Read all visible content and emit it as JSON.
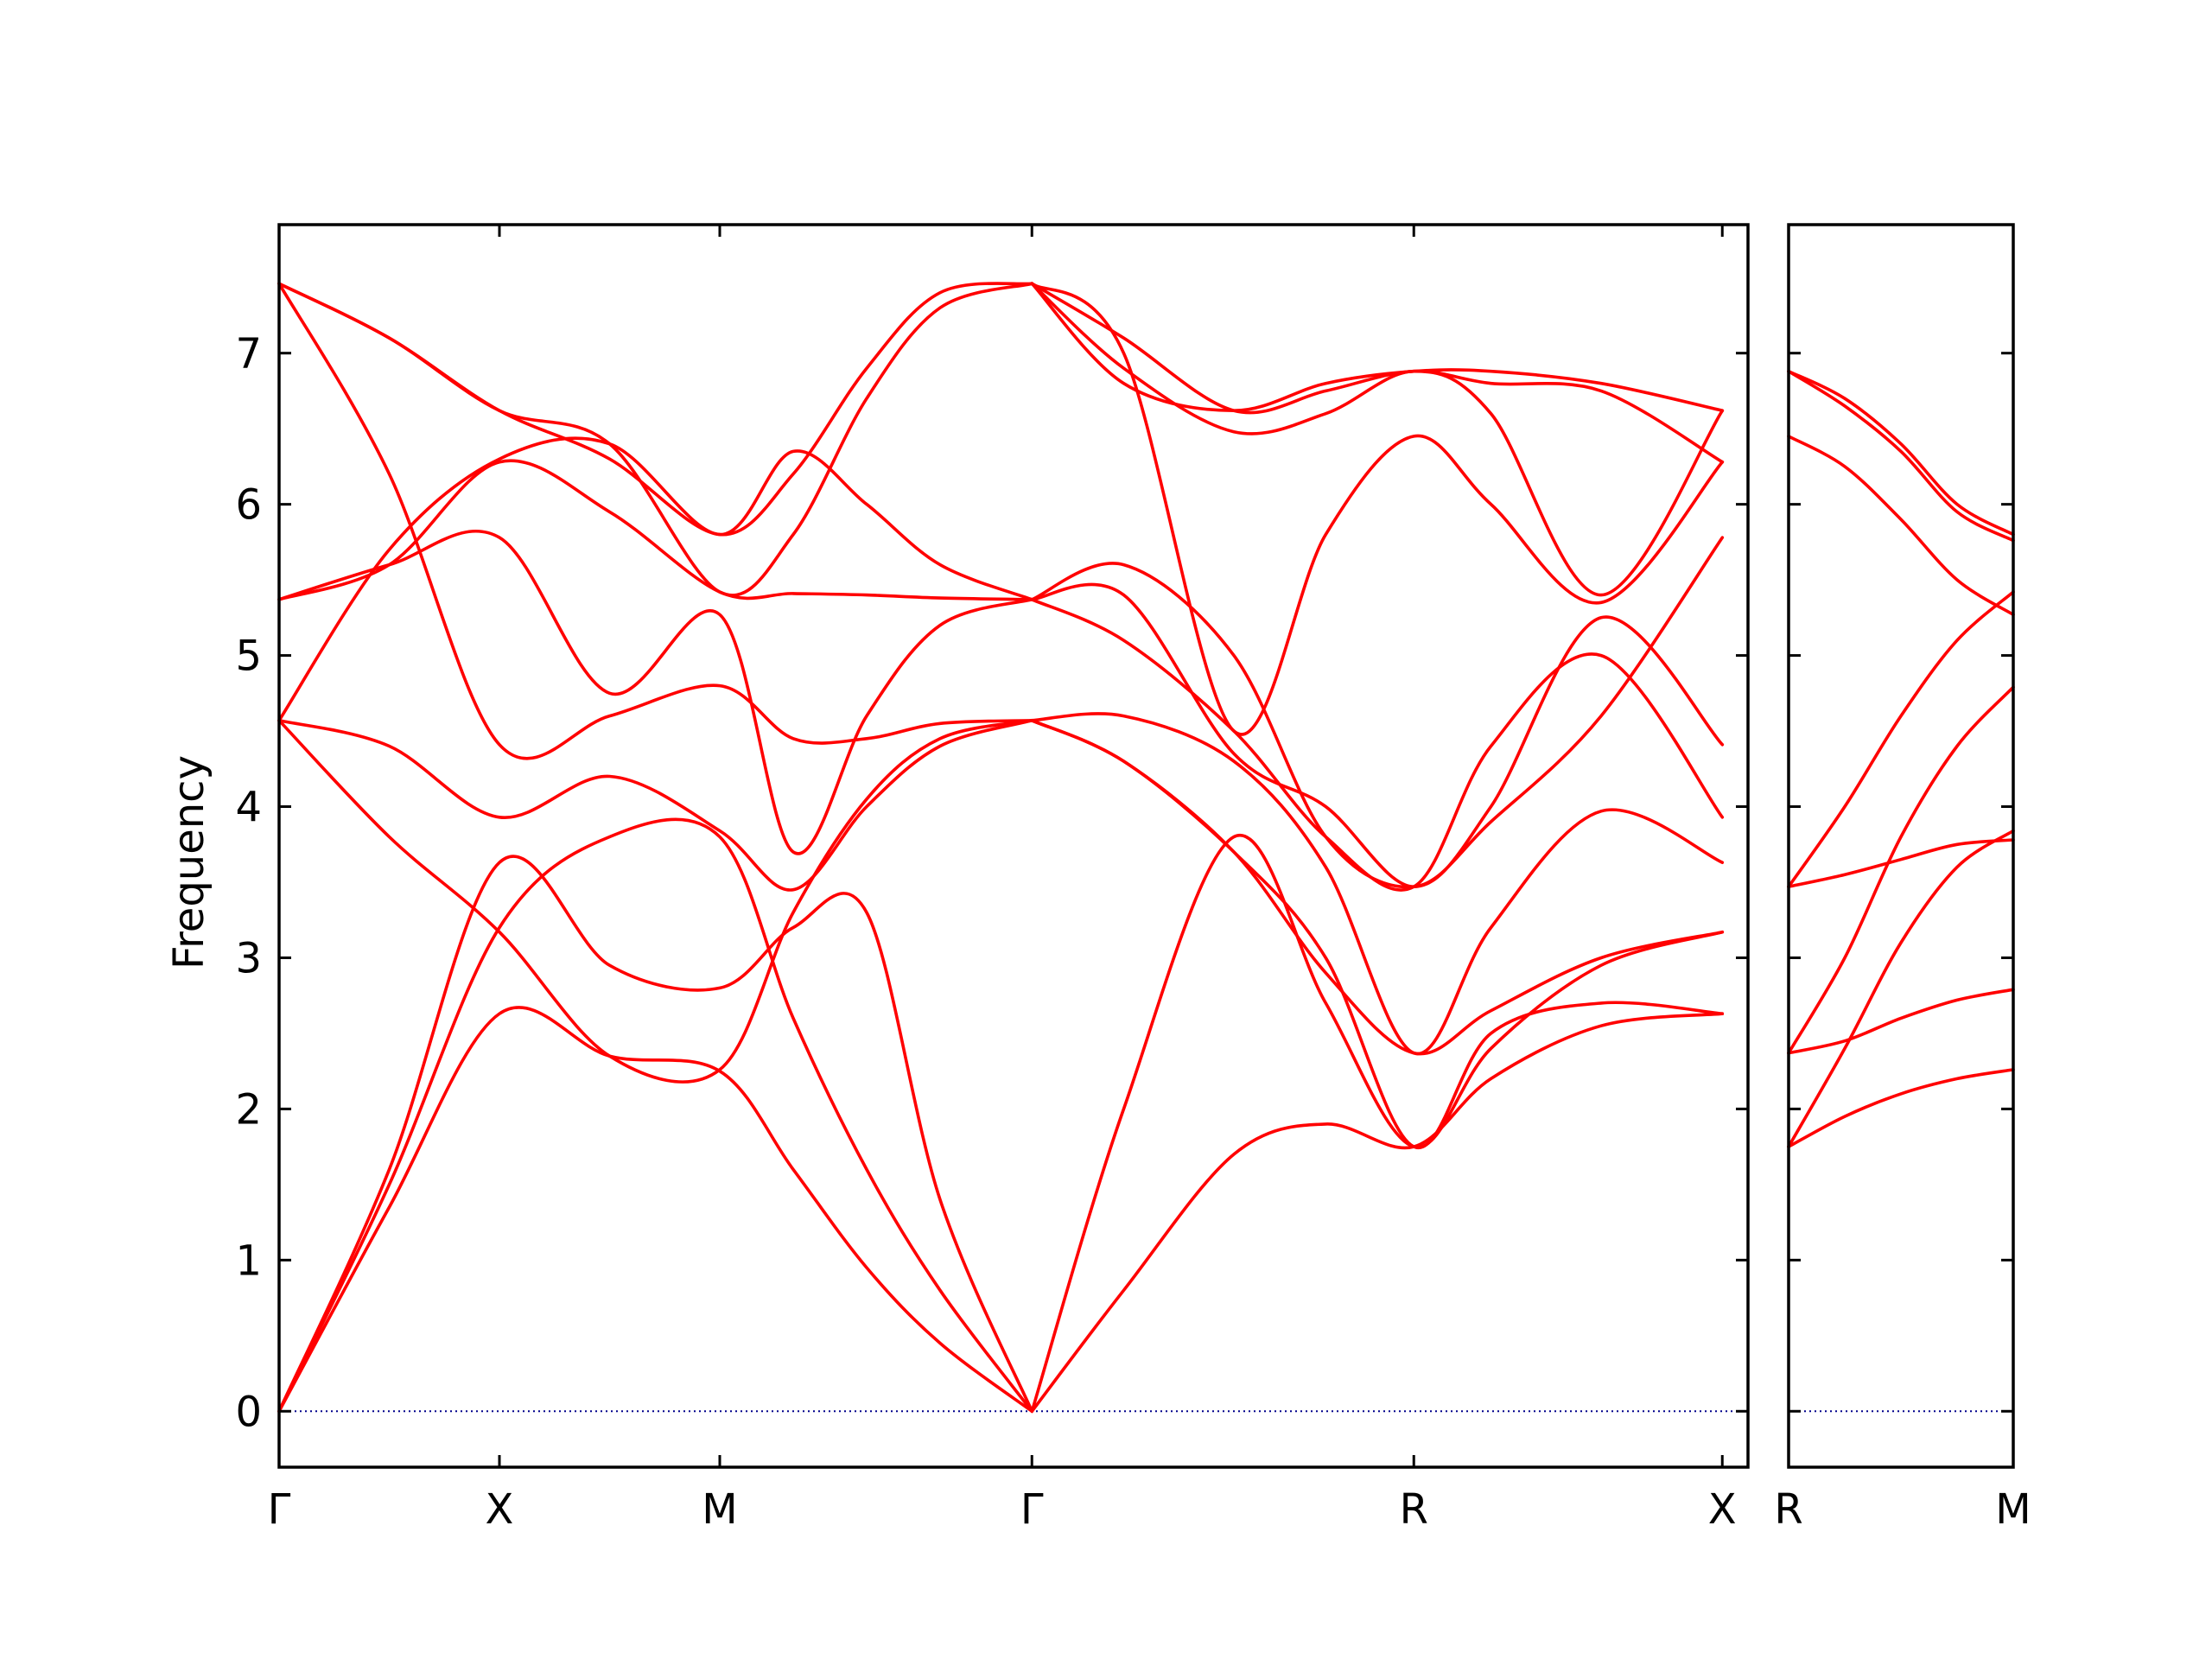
{
  "chart_data": {
    "type": "line",
    "ylabel": "Frequency",
    "ylim": [
      -0.37,
      7.85
    ],
    "yticks": [
      0,
      1,
      2,
      3,
      4,
      5,
      6,
      7
    ],
    "grid": false,
    "legend": "none",
    "colors": {
      "bands": "#ff0000",
      "zero_line": "#00008b",
      "frame": "#000000"
    },
    "panels": [
      {
        "xlim": [
          0,
          4.0
        ],
        "ticks": [
          {
            "x": 0.0,
            "label": "Γ"
          },
          {
            "x": 0.6,
            "label": "X"
          },
          {
            "x": 1.2,
            "label": "M"
          },
          {
            "x": 2.05,
            "label": "Γ"
          },
          {
            "x": 3.09,
            "label": "R"
          },
          {
            "x": 3.93,
            "label": "X"
          }
        ],
        "series": [
          {
            "x": [
              0,
              0.3,
              0.6,
              0.9,
              1.2,
              1.4,
              1.6,
              1.8,
              2.05
            ],
            "values": [
              0,
              1.35,
              2.63,
              2.35,
              2.25,
              1.6,
              0.95,
              0.45,
              0
            ]
          },
          {
            "x": [
              0,
              0.3,
              0.6,
              0.9,
              1.2,
              1.4,
              1.6,
              1.8,
              2.05
            ],
            "values": [
              0,
              1.6,
              3.63,
              2.95,
              2.8,
              3.2,
              3.3,
              1.4,
              0
            ]
          },
          {
            "x": [
              0,
              0.3,
              0.6,
              0.9,
              1.2,
              1.4,
              1.6,
              1.8,
              2.05
            ],
            "values": [
              0,
              1.5,
              3.2,
              3.8,
              3.8,
              2.6,
              1.6,
              0.8,
              0
            ]
          },
          {
            "x": [
              0,
              0.3,
              0.6,
              0.9,
              1.2,
              1.4,
              1.6,
              1.8,
              2.05
            ],
            "values": [
              4.57,
              3.8,
              3.17,
              2.35,
              2.26,
              3.3,
              4.05,
              4.45,
              4.57
            ]
          },
          {
            "x": [
              0,
              0.3,
              0.6,
              0.9,
              1.2,
              1.4,
              1.6,
              1.8,
              2.05
            ],
            "values": [
              4.57,
              4.4,
              3.93,
              4.2,
              3.84,
              3.45,
              4.0,
              4.4,
              4.57
            ]
          },
          {
            "x": [
              0,
              0.3,
              0.6,
              0.9,
              1.2,
              1.4,
              1.6,
              1.8,
              2.05
            ],
            "values": [
              7.46,
              6.2,
              4.41,
              4.6,
              4.8,
              4.45,
              4.45,
              4.55,
              4.57
            ]
          },
          {
            "x": [
              0,
              0.3,
              0.6,
              0.9,
              1.2,
              1.4,
              1.6,
              1.8,
              2.05
            ],
            "values": [
              5.37,
              5.6,
              5.78,
              4.75,
              5.27,
              3.7,
              4.6,
              5.2,
              5.37
            ]
          },
          {
            "x": [
              0,
              0.3,
              0.6,
              0.9,
              1.2,
              1.4,
              1.6,
              1.8,
              2.05
            ],
            "values": [
              5.37,
              5.6,
              6.28,
              5.95,
              5.42,
              5.41,
              5.4,
              5.38,
              5.37
            ]
          },
          {
            "x": [
              0,
              0.3,
              0.6,
              0.9,
              1.2,
              1.4,
              1.6,
              1.8,
              2.05
            ],
            "values": [
              4.57,
              5.7,
              6.3,
              6.4,
              5.8,
              6.35,
              6.0,
              5.6,
              5.37
            ]
          },
          {
            "x": [
              0,
              0.3,
              0.6,
              0.9,
              1.2,
              1.4,
              1.6,
              1.8,
              2.05
            ],
            "values": [
              7.46,
              7.1,
              6.62,
              6.4,
              5.42,
              5.8,
              6.7,
              7.3,
              7.46
            ]
          },
          {
            "x": [
              0,
              0.3,
              0.6,
              0.9,
              1.2,
              1.4,
              1.6,
              1.8,
              2.05
            ],
            "values": [
              7.46,
              7.1,
              6.62,
              6.3,
              5.8,
              6.2,
              6.9,
              7.4,
              7.46
            ]
          },
          {
            "x": [
              2.05,
              2.3,
              2.6,
              2.85,
              3.09,
              3.3,
              3.6,
              3.93
            ],
            "values": [
              0,
              2.0,
              3.8,
              2.7,
              1.75,
              2.4,
              2.95,
              3.17
            ]
          },
          {
            "x": [
              2.05,
              2.3,
              2.6,
              2.85,
              3.09,
              3.3,
              3.6,
              3.93
            ],
            "values": [
              0,
              0.8,
              1.7,
              1.9,
              1.75,
              2.2,
              2.55,
              2.63
            ]
          },
          {
            "x": [
              2.05,
              2.3,
              2.6,
              2.85,
              3.09,
              3.3,
              3.6,
              3.93
            ],
            "values": [
              4.57,
              4.3,
              3.7,
              3.0,
              1.75,
              2.5,
              2.7,
              2.63
            ]
          },
          {
            "x": [
              2.05,
              2.3,
              2.6,
              2.85,
              3.09,
              3.3,
              3.6,
              3.93
            ],
            "values": [
              4.57,
              4.3,
              3.7,
              2.9,
              2.37,
              2.65,
              3.0,
              3.17
            ]
          },
          {
            "x": [
              2.05,
              2.3,
              2.6,
              2.85,
              3.09,
              3.3,
              3.6,
              3.93
            ],
            "values": [
              4.57,
              4.6,
              4.3,
              3.6,
              2.37,
              3.2,
              3.97,
              3.63
            ]
          },
          {
            "x": [
              2.05,
              2.3,
              2.6,
              2.85,
              3.09,
              3.3,
              3.6,
              3.93
            ],
            "values": [
              5.37,
              5.1,
              4.5,
              3.8,
              3.47,
              4.4,
              5.0,
              3.93
            ]
          },
          {
            "x": [
              2.05,
              2.3,
              2.6,
              2.85,
              3.09,
              3.3,
              3.6,
              3.93
            ],
            "values": [
              5.37,
              5.4,
              4.35,
              4.0,
              3.47,
              4.0,
              5.25,
              4.41
            ]
          },
          {
            "x": [
              2.05,
              2.3,
              2.6,
              2.85,
              3.09,
              3.3,
              3.6,
              3.93
            ],
            "values": [
              5.37,
              5.6,
              5.0,
              3.8,
              3.47,
              3.9,
              4.6,
              5.78
            ]
          },
          {
            "x": [
              2.05,
              2.3,
              2.6,
              2.85,
              3.09,
              3.3,
              3.6,
              3.93
            ],
            "values": [
              7.46,
              7.0,
              4.5,
              5.8,
              6.45,
              6.0,
              5.35,
              6.28
            ]
          },
          {
            "x": [
              2.05,
              2.3,
              2.6,
              2.85,
              3.09,
              3.3,
              3.6,
              3.93
            ],
            "values": [
              7.46,
              6.9,
              6.48,
              6.6,
              6.88,
              6.6,
              5.4,
              6.62
            ]
          },
          {
            "x": [
              2.05,
              2.3,
              2.6,
              2.85,
              3.09,
              3.3,
              3.6,
              3.93
            ],
            "values": [
              7.46,
              6.8,
              6.62,
              6.8,
              6.88,
              6.88,
              6.8,
              6.62
            ]
          },
          {
            "x": [
              2.05,
              2.3,
              2.6,
              2.85,
              3.09,
              3.3,
              3.6,
              3.93
            ],
            "values": [
              7.46,
              7.1,
              6.62,
              6.75,
              6.88,
              6.8,
              6.75,
              6.28
            ]
          }
        ]
      },
      {
        "xlim": [
          0,
          1.0
        ],
        "ticks": [
          {
            "x": 0.0,
            "label": "R"
          },
          {
            "x": 1.0,
            "label": "M"
          }
        ],
        "series": [
          {
            "x": [
              0,
              0.25,
              0.5,
              0.75,
              1.0
            ],
            "values": [
              1.75,
              1.95,
              2.1,
              2.2,
              2.26
            ]
          },
          {
            "x": [
              0,
              0.25,
              0.5,
              0.75,
              1.0
            ],
            "values": [
              1.75,
              2.4,
              3.1,
              3.6,
              3.84
            ]
          },
          {
            "x": [
              0,
              0.25,
              0.5,
              0.75,
              1.0
            ],
            "values": [
              2.37,
              2.45,
              2.6,
              2.72,
              2.79
            ]
          },
          {
            "x": [
              0,
              0.25,
              0.5,
              0.75,
              1.0
            ],
            "values": [
              2.37,
              3.0,
              3.8,
              4.4,
              4.79
            ]
          },
          {
            "x": [
              0,
              0.25,
              0.5,
              0.75,
              1.0
            ],
            "values": [
              3.47,
              3.55,
              3.65,
              3.75,
              3.78
            ]
          },
          {
            "x": [
              0,
              0.25,
              0.5,
              0.75,
              1.0
            ],
            "values": [
              3.47,
              4.0,
              4.6,
              5.1,
              5.42
            ]
          },
          {
            "x": [
              0,
              0.25,
              0.5,
              0.75,
              1.0
            ],
            "values": [
              6.45,
              6.25,
              5.9,
              5.5,
              5.27
            ]
          },
          {
            "x": [
              0,
              0.25,
              0.5,
              0.75,
              1.0
            ],
            "values": [
              6.88,
              6.7,
              6.4,
              6.0,
              5.8
            ]
          },
          {
            "x": [
              0,
              0.25,
              0.5,
              0.75,
              1.0
            ],
            "values": [
              6.88,
              6.65,
              6.35,
              5.95,
              5.76
            ]
          }
        ]
      }
    ]
  }
}
